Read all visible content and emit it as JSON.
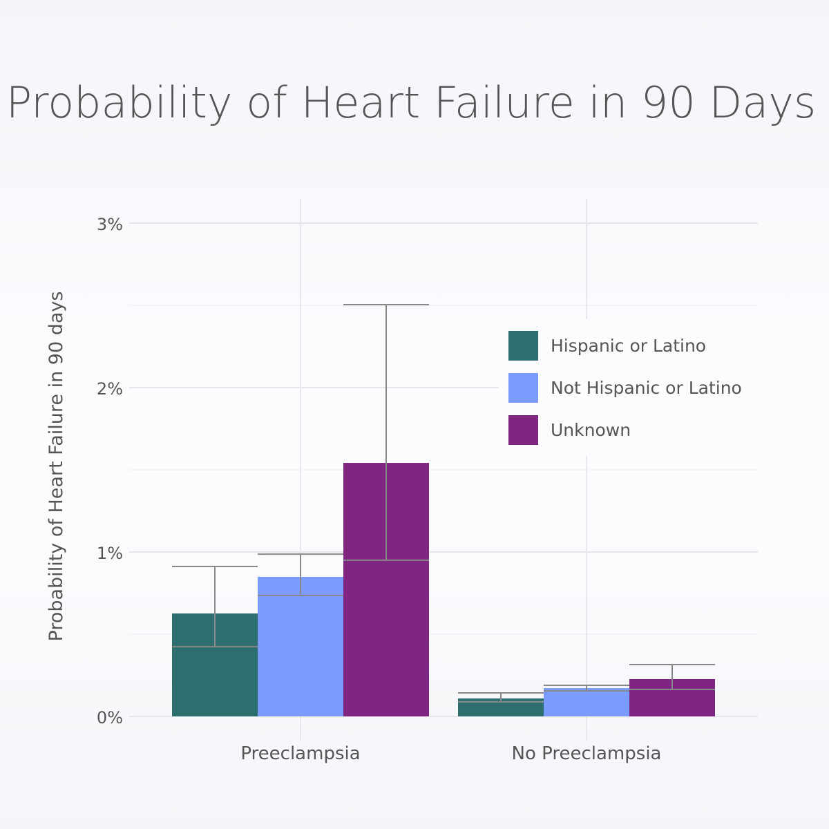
{
  "chart_data": {
    "type": "bar",
    "title": "Probability of Heart Failure in 90 Days",
    "xlabel": "",
    "ylabel": "Probability of Heart Failure in 90 days",
    "categories": [
      "Preeclampsia",
      "No Preeclampsia"
    ],
    "ylim": [
      0,
      3.15
    ],
    "yticks": [
      0,
      1,
      2,
      3
    ],
    "ytick_labels": [
      "0%",
      "1%",
      "2%",
      "3%"
    ],
    "grid": true,
    "legend_position": "top-right",
    "series": [
      {
        "name": "Hispanic or Latino",
        "color": "#2d6e6e",
        "values": [
          0.626,
          0.109
        ],
        "error_low": [
          0.424,
          0.088
        ],
        "error_high": [
          0.912,
          0.143
        ]
      },
      {
        "name": "Not Hispanic or Latino",
        "color": "#7b9bff",
        "values": [
          0.849,
          0.172
        ],
        "error_low": [
          0.735,
          0.155
        ],
        "error_high": [
          0.987,
          0.189
        ]
      },
      {
        "name": "Unknown",
        "color": "#7f2682",
        "values": [
          1.542,
          0.227
        ],
        "error_low": [
          0.95,
          0.164
        ],
        "error_high": [
          2.504,
          0.315
        ]
      }
    ]
  }
}
